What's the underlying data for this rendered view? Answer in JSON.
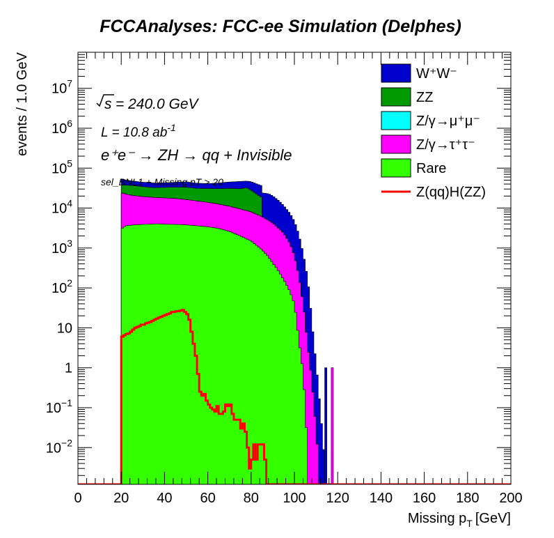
{
  "chart_data": {
    "type": "area",
    "title": "FCCAnalyses: FCC-ee Simulation (Delphes)",
    "xlabel": "Missing p_T [GeV]",
    "xlabel_main": "Missing p",
    "xlabel_sub": "T",
    "xlabel_unit": "[GeV]",
    "ylabel": "events / 1.0 GeV",
    "xlim": [
      0,
      200
    ],
    "ylim": [
      0.0012,
      80000000
    ],
    "y_scale": "log",
    "grid": false,
    "legend_position": "top-right",
    "x_ticks": [
      "0",
      "20",
      "40",
      "60",
      "80",
      "100",
      "120",
      "140",
      "160",
      "180",
      "200"
    ],
    "y_ticks": [
      {
        "value": 0.01,
        "base": "10",
        "exp": "−2"
      },
      {
        "value": 0.1,
        "base": "10",
        "exp": "−1"
      },
      {
        "value": 1,
        "label": "1"
      },
      {
        "value": 10,
        "label": "10"
      },
      {
        "value": 100,
        "base": "10",
        "exp": "2"
      },
      {
        "value": 1000,
        "base": "10",
        "exp": "3"
      },
      {
        "value": 10000,
        "base": "10",
        "exp": "4"
      },
      {
        "value": 100000,
        "base": "10",
        "exp": "5"
      },
      {
        "value": 1000000,
        "base": "10",
        "exp": "6"
      },
      {
        "value": 10000000,
        "base": "10",
        "exp": "7"
      }
    ],
    "annotations": {
      "sqrt_s": "= 240.0 GeV",
      "sqrt_label": "s",
      "lumi": "L = 10.8 ab",
      "lumi_exp": "-1",
      "process": "e⁺e⁻ → ZH → qq + Invisible",
      "selection": "sel_BNL1 + Missing pT > 20"
    },
    "stack_order": [
      "Rare",
      "Z/γ→τ⁺τ⁻",
      "Z/γ→μ⁺μ⁻",
      "ZZ",
      "W⁺W⁻"
    ],
    "series": [
      {
        "name": "Rare",
        "color": "#33ff00",
        "x": [
          20,
          22,
          24,
          26,
          28,
          30,
          32,
          35,
          38,
          40,
          45,
          50,
          55,
          60,
          65,
          70,
          75,
          80,
          85,
          88,
          90,
          92,
          94,
          96,
          98,
          100,
          101,
          102,
          103,
          104,
          105,
          106
        ],
        "values": [
          3000,
          3600,
          3700,
          3800,
          3850,
          3900,
          3950,
          4000,
          4000,
          3950,
          3900,
          3800,
          3600,
          3400,
          3100,
          2600,
          2000,
          1500,
          900,
          600,
          420,
          300,
          200,
          130,
          80,
          40,
          15,
          5,
          2,
          0.8,
          0.1,
          0.01
        ]
      },
      {
        "name": "Z/γ→τ⁺τ⁻",
        "color": "#ff00ff",
        "x": [
          20,
          22,
          25,
          30,
          35,
          40,
          45,
          50,
          55,
          60,
          65,
          70,
          75,
          80,
          85,
          90,
          95,
          98,
          100,
          102,
          104,
          105,
          106,
          107,
          108,
          109,
          110,
          111
        ],
        "values": [
          21000,
          19000,
          17000,
          15500,
          14500,
          14000,
          13500,
          12500,
          11500,
          10500,
          9500,
          8500,
          7500,
          6500,
          5200,
          3800,
          2200,
          1200,
          600,
          200,
          40,
          15,
          4,
          1.5,
          0.5,
          0.12,
          0.03,
          0.005
        ]
      },
      {
        "name": "Z/γ→μ⁺μ⁻",
        "color": "#00ffff",
        "x": [
          20,
          110
        ],
        "values": [
          0,
          0
        ]
      },
      {
        "name": "ZZ",
        "color": "#009900",
        "x": [
          20,
          25,
          30,
          35,
          40,
          45,
          50,
          55,
          60,
          65,
          70,
          75,
          78,
          80,
          85
        ],
        "values": [
          14000,
          16000,
          15000,
          14000,
          15000,
          16000,
          17000,
          16000,
          17000,
          18000,
          20000,
          21000,
          24000,
          20000,
          12000
        ]
      },
      {
        "name": "W⁺W⁻",
        "color": "#0000cc",
        "x": [
          20,
          25,
          30,
          35,
          40,
          45,
          50,
          55,
          60,
          65,
          70,
          75,
          78,
          80,
          85,
          88,
          90,
          93,
          96,
          98,
          100,
          102,
          104,
          106,
          107,
          108,
          109,
          110,
          111,
          112,
          113,
          114
        ],
        "values": [
          15000,
          11000,
          10000,
          10000,
          10000,
          11000,
          12000,
          11000,
          10000,
          12000,
          14000,
          16000,
          15000,
          18000,
          18000,
          18000,
          16000,
          12000,
          8000,
          6000,
          4000,
          2000,
          700,
          180,
          60,
          15,
          4,
          1.2,
          0.35,
          0.08,
          0.02,
          0.004
        ]
      }
    ],
    "single_bins": [
      {
        "series": "W⁺W⁻",
        "x": 114,
        "value": 1.0
      },
      {
        "series": "Z/γ→τ⁺τ⁻",
        "x": 117,
        "value": 1.0
      }
    ],
    "signal": {
      "name": "Z(qq)H(ZZ)",
      "color": "#ff0000",
      "x": [
        20,
        21,
        22,
        23,
        24,
        25,
        26,
        27,
        28,
        29,
        30,
        31,
        32,
        33,
        34,
        35,
        36,
        37,
        38,
        39,
        40,
        41,
        42,
        43,
        44,
        45,
        46,
        47,
        48,
        49,
        50,
        51,
        52,
        53,
        54,
        55,
        56,
        57,
        58,
        59,
        60,
        61,
        62,
        63,
        64,
        65,
        66,
        67,
        68,
        69,
        70,
        71,
        72,
        73,
        74,
        75,
        76,
        77,
        78,
        79,
        80,
        81,
        82,
        83,
        84,
        85,
        86
      ],
      "values": [
        6,
        6.5,
        7,
        7.2,
        8,
        9,
        10,
        10.5,
        11,
        12,
        12,
        13,
        13.5,
        14,
        15,
        16,
        17,
        18,
        19,
        20,
        21,
        22,
        23,
        25,
        25,
        26,
        26,
        27,
        28,
        25,
        22,
        16,
        8,
        4,
        2,
        0.7,
        0.25,
        0.2,
        0.22,
        0.15,
        0.12,
        0.1,
        0.09,
        0.08,
        0.11,
        0.07,
        0.07,
        0.08,
        0.12,
        0.11,
        0.12,
        0.07,
        0.05,
        0.05,
        0.05,
        0.03,
        0.04,
        0.025,
        0.01,
        0.003,
        0.005,
        0.012,
        0.005,
        0.012,
        0.012,
        0.012,
        0.005
      ]
    }
  }
}
